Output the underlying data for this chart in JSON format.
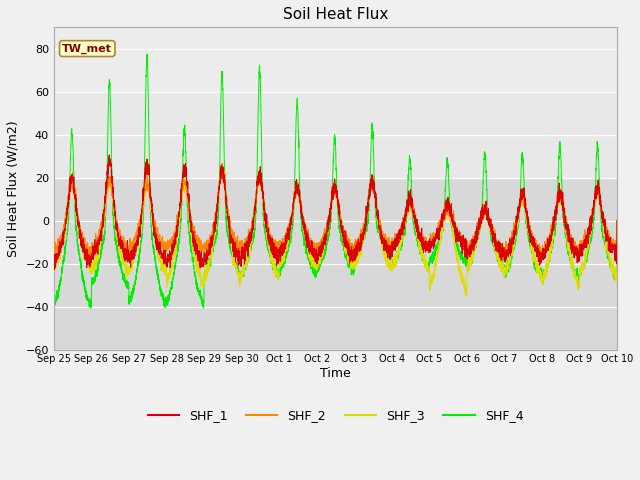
{
  "title": "Soil Heat Flux",
  "xlabel": "Time",
  "ylabel": "Soil Heat Flux (W/m2)",
  "ylim": [
    -60,
    90
  ],
  "yticks": [
    -60,
    -40,
    -20,
    0,
    20,
    40,
    60,
    80
  ],
  "fig_bg_color": "#f0f0f0",
  "plot_bg_color": "#d8d8d8",
  "colors": {
    "SHF_1": "#dd0000",
    "SHF_2": "#ff8800",
    "SHF_3": "#dddd00",
    "SHF_4": "#00ee00"
  },
  "annotation_text": "TW_met",
  "annotation_box_facecolor": "#ffffcc",
  "annotation_box_edgecolor": "#aa8833",
  "annotation_text_color": "#880000",
  "tick_labels": [
    "Sep 25",
    "Sep 26",
    "Sep 27",
    "Sep 28",
    "Sep 29",
    "Sep 30",
    "Oct 1",
    "Oct 2",
    "Oct 3",
    "Oct 4",
    "Oct 5",
    "Oct 6",
    "Oct 7",
    "Oct 8",
    "Oct 9",
    "Oct 10"
  ],
  "n_days": 15,
  "pts_per_day": 288
}
